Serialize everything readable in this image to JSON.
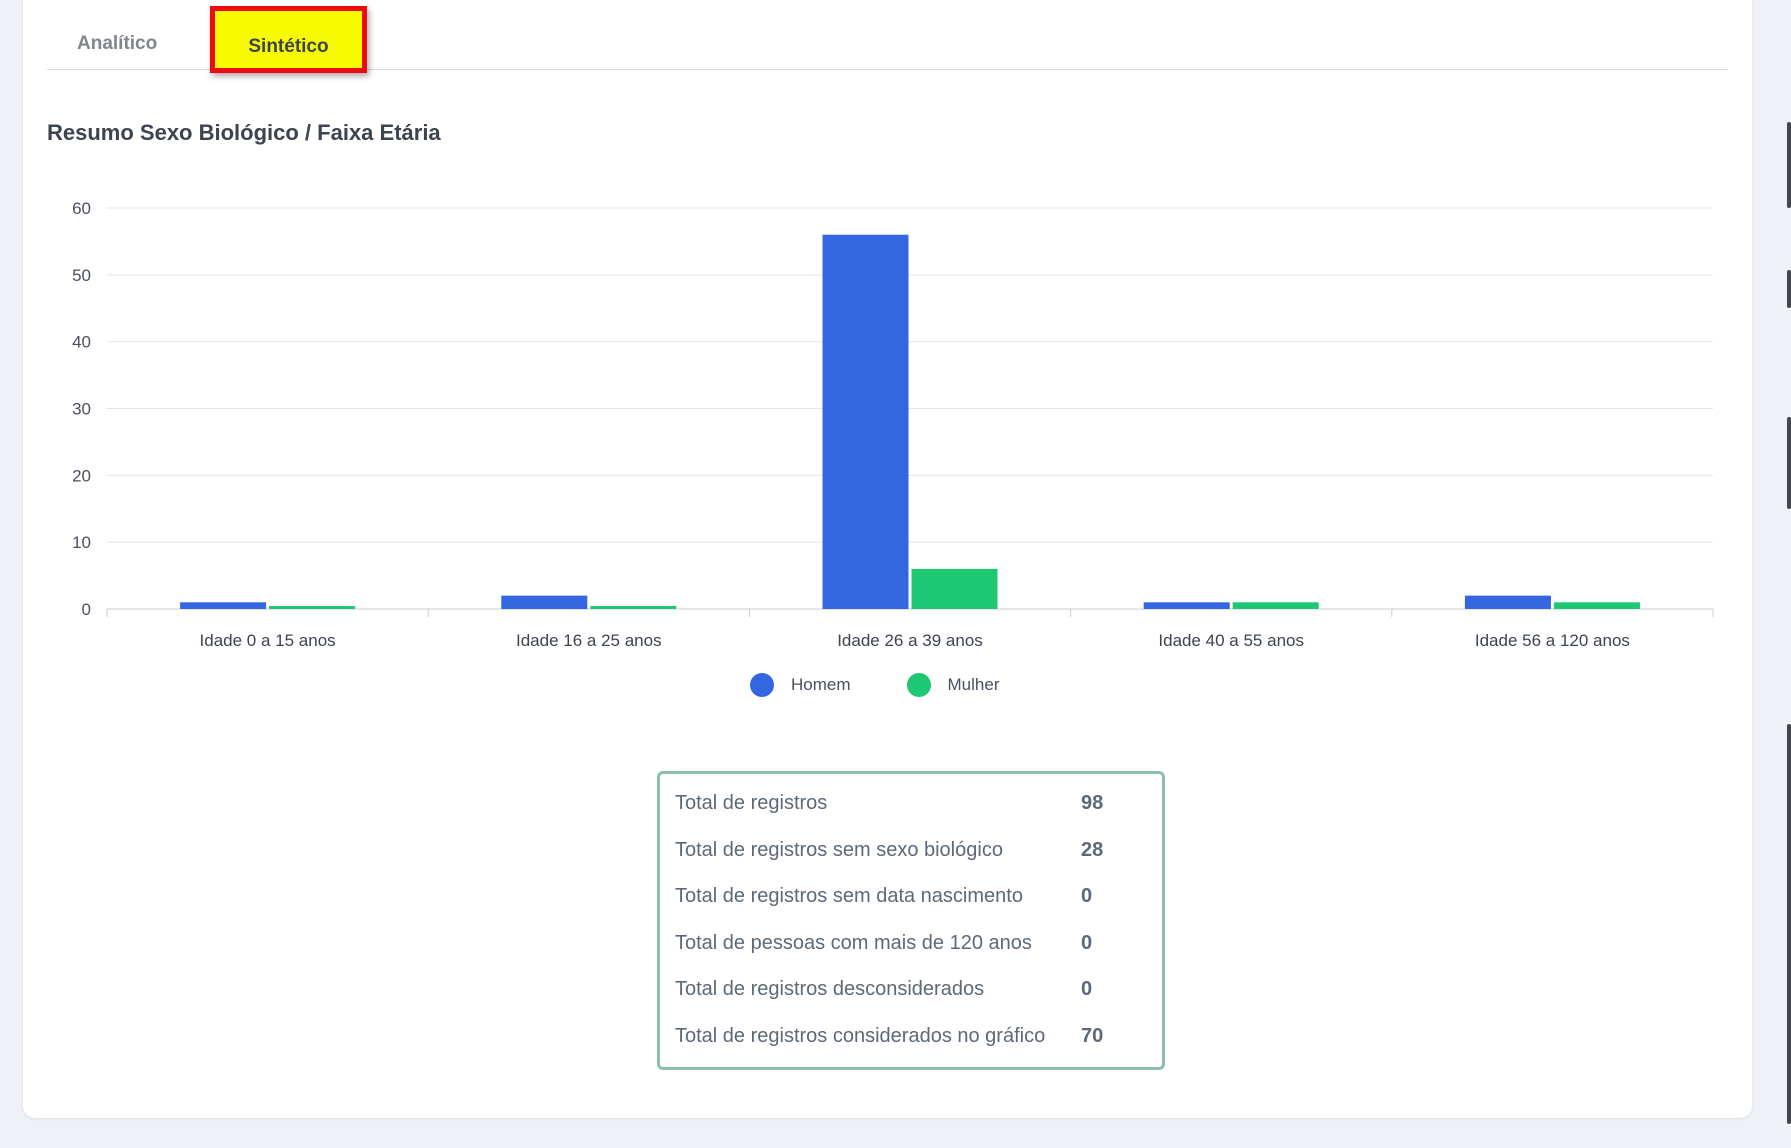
{
  "tabs": [
    {
      "label": "Analítico",
      "active": false
    },
    {
      "label": "Sintético",
      "active": true
    }
  ],
  "section_title": "Resumo Sexo Biológico / Faixa Etária",
  "chart_data": {
    "type": "bar",
    "title": "",
    "xlabel": "",
    "ylabel": "",
    "categories": [
      "Idade 0 a 15 anos",
      "Idade 16 a 25 anos",
      "Idade 26 a 39 anos",
      "Idade 40 a 55 anos",
      "Idade 56 a 120 anos"
    ],
    "series": [
      {
        "name": "Homem",
        "values": [
          1,
          2,
          56,
          1,
          2
        ],
        "color": "#3366e0"
      },
      {
        "name": "Mulher",
        "values": [
          0,
          0,
          6,
          1,
          1
        ],
        "color": "#1ec772"
      }
    ],
    "yticks": [
      "0",
      "10",
      "20",
      "30",
      "40",
      "50",
      "60"
    ],
    "ylim": [
      0,
      60
    ],
    "grid": true,
    "legend_position": "bottom"
  },
  "summary": [
    {
      "label": "Total de registros",
      "value": "98"
    },
    {
      "label": "Total de registros sem sexo biológico",
      "value": "28"
    },
    {
      "label": "Total de registros sem data nascimento",
      "value": "0"
    },
    {
      "label": "Total de pessoas com mais de 120 anos",
      "value": "0"
    },
    {
      "label": "Total de registros desconsiderados",
      "value": "0"
    },
    {
      "label": "Total de registros considerados no gráfico",
      "value": "70"
    }
  ]
}
